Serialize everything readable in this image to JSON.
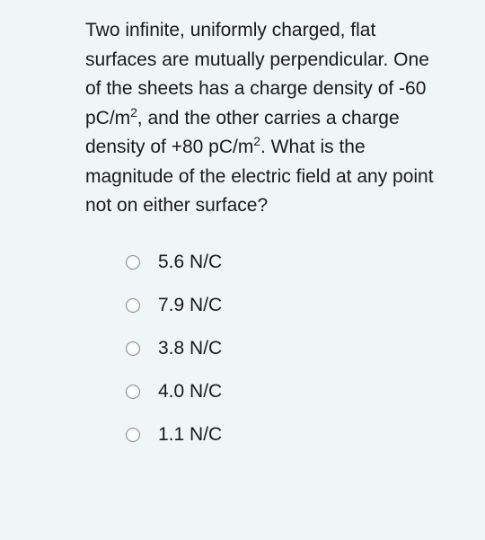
{
  "question": {
    "parts": [
      {
        "text": "Two infinite, uniformly charged, flat surfaces are mutually perpendicular. One of the sheets has a charge density of -60 pC/m"
      },
      {
        "sup": "2"
      },
      {
        "text": ", and the other carries a charge density of +80 pC/m"
      },
      {
        "sup": "2"
      },
      {
        "text": ". What is the magnitude of the electric field at any point not on either surface?"
      }
    ]
  },
  "options": [
    {
      "label": "5.6 N/C"
    },
    {
      "label": "7.9 N/C"
    },
    {
      "label": "3.8 N/C"
    },
    {
      "label": "4.0 N/C"
    },
    {
      "label": "1.1 N/C"
    }
  ],
  "colors": {
    "background": "#f0f5f7",
    "text": "#1a1a1a",
    "radio_border": "#888"
  },
  "typography": {
    "question_fontsize": 21,
    "option_fontsize": 21,
    "line_height": 1.55
  }
}
